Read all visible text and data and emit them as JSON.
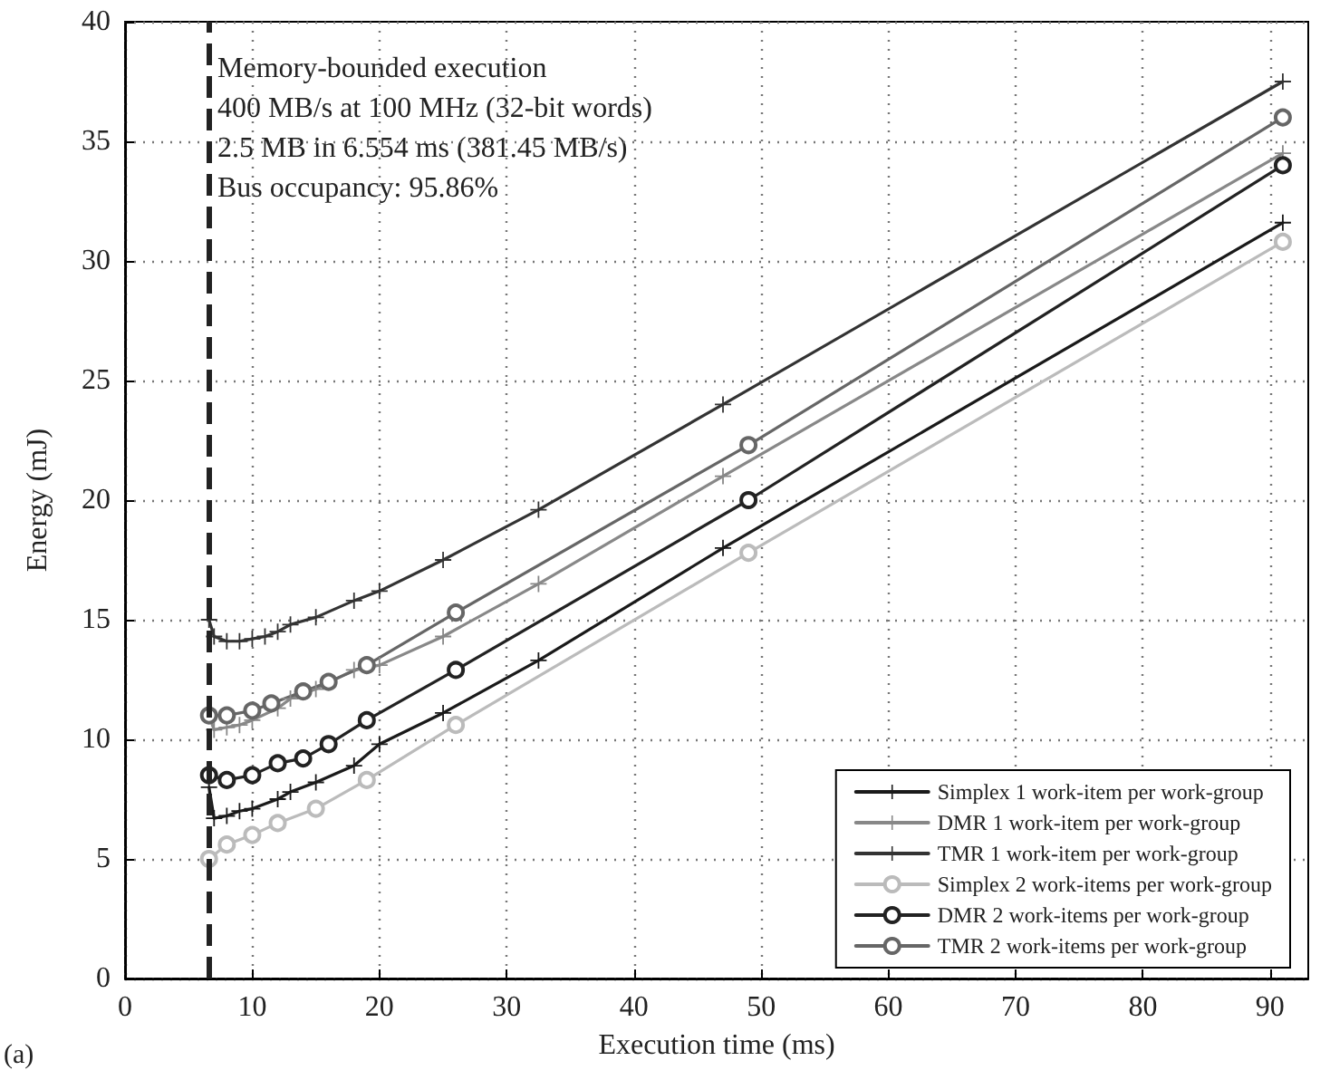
{
  "chart_data": {
    "type": "line",
    "xlabel": "Execution time (ms)",
    "ylabel": "Energy (mJ)",
    "xlim": [
      0,
      93
    ],
    "xticks": [
      0,
      10,
      20,
      30,
      40,
      50,
      60,
      70,
      80,
      90
    ],
    "ylim": [
      0,
      40
    ],
    "yticks": [
      0,
      5,
      10,
      15,
      20,
      25,
      30,
      35,
      40
    ],
    "grid": true,
    "legend": "bottom right",
    "series": [
      {
        "name": "Simplex 1 work-item per work-group",
        "color": "#1a1a1a",
        "marker": "cross",
        "x": [
          6.6,
          7,
          8,
          9,
          10,
          12,
          13,
          15,
          18,
          20,
          25,
          32.5,
          47,
          91
        ],
        "values": [
          8,
          6.7,
          6.8,
          7,
          7.1,
          7.5,
          7.8,
          8.2,
          8.9,
          9.8,
          11.1,
          13.3,
          18,
          31.6
        ]
      },
      {
        "name": "DMR 1 work-item per work-group",
        "color": "#888888",
        "marker": "cross",
        "x": [
          6.6,
          7,
          8,
          9,
          10,
          12,
          13,
          15,
          18,
          20,
          25,
          32.5,
          47,
          91
        ],
        "values": [
          11,
          10.4,
          10.5,
          10.6,
          10.8,
          11.3,
          11.7,
          12.1,
          12.9,
          13.1,
          14.3,
          16.5,
          21,
          34.5
        ]
      },
      {
        "name": "TMR 1 work-item per work-group",
        "color": "#333333",
        "marker": "cross",
        "x": [
          6.6,
          7,
          8,
          9,
          10,
          11,
          12,
          13,
          15,
          18,
          20,
          25,
          32.5,
          47,
          91
        ],
        "values": [
          15,
          14.3,
          14.1,
          14.1,
          14.2,
          14.3,
          14.5,
          14.8,
          15.1,
          15.8,
          16.2,
          17.5,
          19.6,
          24,
          37.5
        ]
      },
      {
        "name": "Simplex 2 work-items per work-group",
        "color": "#bbbbbb",
        "marker": "circle",
        "x": [
          6.6,
          8,
          10,
          12,
          15,
          19,
          26,
          49,
          91
        ],
        "values": [
          5,
          5.6,
          6,
          6.5,
          7.1,
          8.3,
          10.6,
          17.8,
          30.8
        ]
      },
      {
        "name": "DMR 2 work-items per work-group",
        "color": "#222222",
        "marker": "circle",
        "x": [
          6.6,
          8,
          10,
          12,
          14,
          16,
          19,
          26,
          49,
          91
        ],
        "values": [
          8.5,
          8.3,
          8.5,
          9,
          9.2,
          9.8,
          10.8,
          12.9,
          20,
          34
        ]
      },
      {
        "name": "TMR 2 work-items per work-group",
        "color": "#666666",
        "marker": "circle",
        "x": [
          6.6,
          8,
          10,
          11.5,
          14,
          16,
          19,
          26,
          49,
          91
        ],
        "values": [
          11,
          11,
          11.2,
          11.5,
          12,
          12.4,
          13.1,
          15.3,
          22.3,
          36
        ]
      }
    ],
    "ref_lines": [
      {
        "axis": "x",
        "value": 6.554,
        "color": "#222222",
        "line_style": "dashed"
      }
    ],
    "annotations": [
      "Memory-bounded execution",
      "400 MB/s at 100 MHz (32-bit words)",
      "2.5 MB in 6.554 ms (381.45 MB/s)",
      "Bus occupancy: 95.86%",
      "(a)"
    ]
  }
}
